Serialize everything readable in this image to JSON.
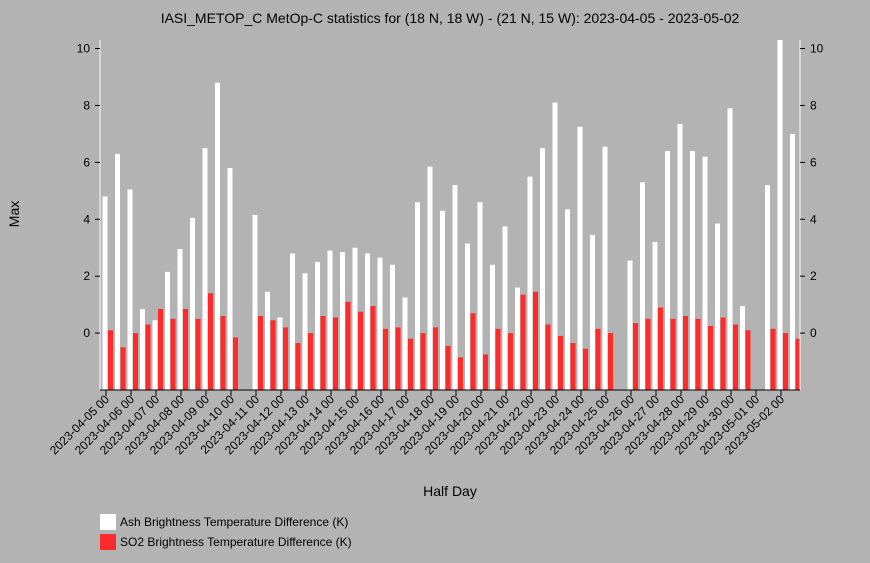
{
  "chart_data": {
    "type": "bar",
    "title": "IASI_METOP_C MetOp-C statistics for (18 N, 18 W) - (21 N, 15 W): 2023-04-05 - 2023-05-02",
    "xlabel": "Half Day",
    "ylabel": "Max",
    "ylim": [
      -2,
      10.3
    ],
    "yticks": [
      0,
      2,
      4,
      6,
      8,
      10
    ],
    "grid": false,
    "legend_position": "bottom-left",
    "tick_labels": [
      "2023-04-05 00",
      "2023-04-06 00",
      "2023-04-07 00",
      "2023-04-08 00",
      "2023-04-09 00",
      "2023-04-10 00",
      "2023-04-11 00",
      "2023-04-12 00",
      "2023-04-13 00",
      "2023-04-14 00",
      "2023-04-15 00",
      "2023-04-16 00",
      "2023-04-17 00",
      "2023-04-18 00",
      "2023-04-19 00",
      "2023-04-20 00",
      "2023-04-21 00",
      "2023-04-22 00",
      "2023-04-23 00",
      "2023-04-24 00",
      "2023-04-25 00",
      "2023-04-26 00",
      "2023-04-27 00",
      "2023-04-28 00",
      "2023-04-29 00",
      "2023-04-30 00",
      "2023-05-01 00",
      "2023-05-02 00"
    ],
    "series": [
      {
        "name": "Ash Brightness Temperature Difference (K)",
        "color": "#ffffff",
        "values": [
          4.8,
          6.3,
          5.05,
          0.85,
          0.45,
          2.15,
          2.95,
          4.05,
          6.5,
          8.8,
          5.8,
          null,
          4.15,
          1.45,
          0.55,
          2.8,
          2.1,
          2.5,
          2.9,
          2.85,
          3.0,
          2.8,
          2.65,
          2.4,
          1.25,
          4.6,
          5.85,
          4.3,
          5.2,
          3.15,
          4.6,
          2.4,
          3.75,
          1.6,
          5.5,
          6.5,
          8.1,
          4.35,
          7.25,
          3.45,
          6.55,
          null,
          2.55,
          5.3,
          3.2,
          6.4,
          7.35,
          6.4,
          6.2,
          3.85,
          7.9,
          0.95,
          null,
          5.2,
          10.3,
          7.0
        ],
        "bar_values": null
      },
      {
        "name": "SO2 Brightness Temperature Difference (K)",
        "color": "#ff2b2b",
        "values": [
          0.1,
          -0.5,
          0.0,
          0.3,
          0.85,
          0.5,
          0.85,
          0.5,
          1.4,
          0.6,
          -0.15,
          null,
          0.6,
          0.45,
          0.2,
          -0.35,
          0.0,
          0.6,
          0.55,
          1.1,
          0.75,
          0.95,
          0.15,
          0.2,
          -0.2,
          0.0,
          0.2,
          -0.45,
          -0.85,
          0.7,
          -0.75,
          0.15,
          0.0,
          1.35,
          1.45,
          0.3,
          -0.1,
          -0.35,
          -0.55,
          0.15,
          0.0,
          null,
          0.35,
          0.5,
          0.9,
          0.5,
          0.6,
          0.5,
          0.25,
          0.55,
          0.3,
          0.1,
          null,
          0.15,
          0.0,
          -0.2
        ]
      }
    ]
  }
}
